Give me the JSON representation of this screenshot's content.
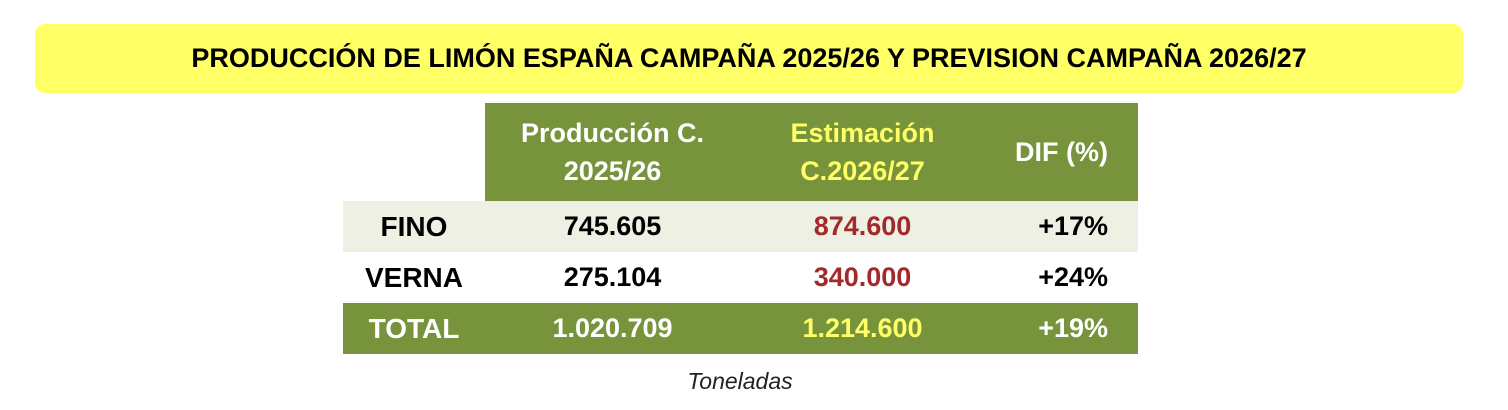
{
  "title": "PRODUCCIÓN DE LIMÓN ESPAÑA CAMPAÑA 2025/26 Y PREVISION CAMPAÑA 2026/27",
  "table": {
    "header": [
      "Producción C. 2025/26",
      "Estimación C.2026/27",
      "DIF (%)"
    ],
    "rows": [
      [
        "FINO",
        "745.605",
        "874.600",
        "+17%"
      ],
      [
        "VERNA",
        "275.104",
        "340.000",
        "+24%"
      ],
      [
        "TOTAL",
        "1.020.709",
        "1.214.600",
        "+19%"
      ]
    ]
  },
  "note": "Toneladas"
}
